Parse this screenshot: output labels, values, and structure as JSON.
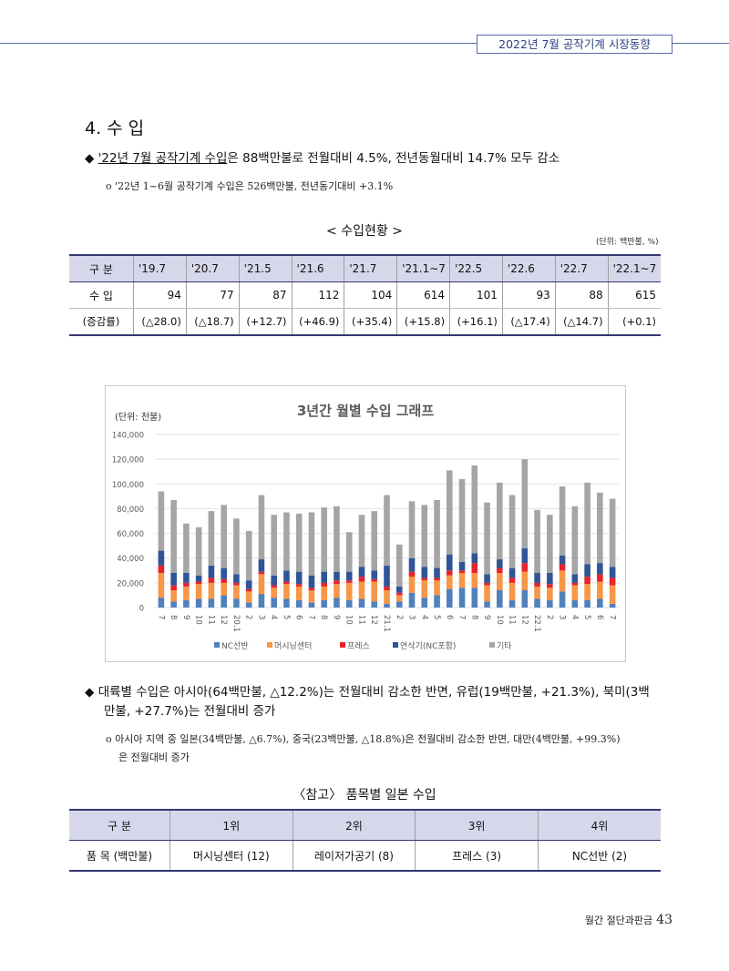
{
  "header": {
    "title": "2022년 7월 공작기계 시장동향"
  },
  "section": {
    "title": "4. 수 입"
  },
  "bullet1": {
    "marker": "◆",
    "highlight": "'22년 7월 공작기계 수입",
    "rest": "은 88백만불로 전월대비 4.5%, 전년동월대비 14.7% 모두 감소"
  },
  "sub1": {
    "text": "o '22년 1~6월 공작기계 수입은 526백만불, 전년동기대비 +3.1%"
  },
  "table1": {
    "title": "< 수입현황 >",
    "unit": "(단위: 백만불, %)",
    "headers": [
      "구 분",
      "'19.7",
      "'20.7",
      "'21.5",
      "'21.6",
      "'21.7",
      "'21.1~7",
      "'22.5",
      "'22.6",
      "'22.7",
      "'22.1~7"
    ],
    "rows": [
      [
        "수 입",
        "94",
        "77",
        "87",
        "112",
        "104",
        "614",
        "101",
        "93",
        "88",
        "615"
      ],
      [
        "(증감률)",
        "(△28.0)",
        "(△18.7)",
        "(+12.7)",
        "(+46.9)",
        "(+35.4)",
        "(+15.8)",
        "(+16.1)",
        "(△17.4)",
        "(△14.7)",
        "(+0.1)"
      ]
    ]
  },
  "chart_data": {
    "type": "bar",
    "stacked": true,
    "title": "3년간 월별 수입 그래프",
    "unit_label": "(단위: 천불)",
    "ylim": [
      0,
      140000
    ],
    "yticks": [
      "0",
      "20,000",
      "40,000",
      "60,000",
      "80,000",
      "100,000",
      "120,000",
      "140,000"
    ],
    "categories": [
      "7",
      "8",
      "9",
      "10",
      "11",
      "12",
      "20.1",
      "2",
      "3",
      "4",
      "5",
      "6",
      "7",
      "8",
      "9",
      "10",
      "11",
      "12",
      "21.1",
      "2",
      "3",
      "4",
      "5",
      "6",
      "7",
      "8",
      "9",
      "10",
      "11",
      "12",
      "22.1",
      "2",
      "3",
      "4",
      "5",
      "6",
      "7"
    ],
    "series": [
      {
        "name": "NC선반",
        "color": "#4f81bd",
        "values": [
          8000,
          5000,
          6000,
          7000,
          7000,
          10000,
          7000,
          4000,
          11000,
          8000,
          7000,
          6000,
          4000,
          6000,
          8000,
          6000,
          7000,
          5000,
          3000,
          5000,
          12000,
          8000,
          10000,
          15000,
          16000,
          16000,
          5000,
          14000,
          6000,
          14000,
          7000,
          6000,
          13000,
          6000,
          6000,
          7000,
          3000
        ]
      },
      {
        "name": "머시닝센터",
        "color": "#f79646",
        "values": [
          20000,
          9000,
          11000,
          12000,
          13000,
          10000,
          11000,
          9000,
          16000,
          8000,
          12000,
          11000,
          10000,
          11000,
          11000,
          14000,
          14000,
          16000,
          11000,
          5000,
          13000,
          14000,
          12000,
          11000,
          12000,
          12000,
          13000,
          14000,
          14000,
          15000,
          10000,
          10000,
          17000,
          12000,
          13000,
          14000,
          15000
        ]
      },
      {
        "name": "프레스",
        "color": "#e8232b",
        "values": [
          6000,
          4000,
          3000,
          2000,
          4000,
          3000,
          2000,
          2000,
          2000,
          2000,
          2000,
          2000,
          2000,
          3000,
          3000,
          2000,
          4000,
          2000,
          3000,
          2000,
          4000,
          2000,
          2000,
          4000,
          2000,
          8000,
          2000,
          4000,
          4000,
          7000,
          3000,
          3000,
          5000,
          2000,
          6000,
          6000,
          6000
        ]
      },
      {
        "name": "연삭기(NC포함)",
        "color": "#2f5597",
        "values": [
          12000,
          10000,
          8000,
          5000,
          10000,
          9000,
          7000,
          7000,
          10000,
          8000,
          9000,
          10000,
          10000,
          9000,
          7000,
          7000,
          8000,
          7000,
          17000,
          5000,
          11000,
          9000,
          8000,
          13000,
          7000,
          8000,
          7000,
          7000,
          8000,
          12000,
          8000,
          9000,
          7000,
          7000,
          10000,
          9000,
          9000
        ]
      },
      {
        "name": "기타",
        "color": "#a5a5a5",
        "values": [
          48000,
          59000,
          40000,
          39000,
          44000,
          51000,
          45000,
          40000,
          52000,
          49000,
          47000,
          47000,
          51000,
          52000,
          53000,
          32000,
          42000,
          48000,
          57000,
          34000,
          46000,
          50000,
          55000,
          68000,
          67000,
          71000,
          58000,
          62000,
          59000,
          72000,
          51000,
          47000,
          56000,
          55000,
          66000,
          57000,
          55000
        ]
      }
    ]
  },
  "bullet2": {
    "marker": "◆",
    "line1": "대륙별 수입은 아시아(64백만불, △12.2%)는 전월대비 감소한 반면, 유럽(19백만불, +21.3%), 북미(3백",
    "line2": "만불, +27.7%)는 전월대비 증가"
  },
  "sub2": {
    "line1": "o 아시아 지역 중 일본(34백만불, △6.7%), 중국(23백만불, △18.8%)은 전월대비 감소한 반면, 대만(4백만불, +99.3%)",
    "line2": "은 전월대비 증가"
  },
  "table2": {
    "title": "〈참고〉 품목별 일본 수입",
    "headers": [
      "구 분",
      "1위",
      "2위",
      "3위",
      "4위"
    ],
    "rows": [
      [
        "품 목 (백만불)",
        "머시닝센터 (12)",
        "레이저가공기 (8)",
        "프레스 (3)",
        "NC선반 (2)"
      ]
    ]
  },
  "footer": {
    "label": "월간 절단과판금",
    "page": "43"
  }
}
